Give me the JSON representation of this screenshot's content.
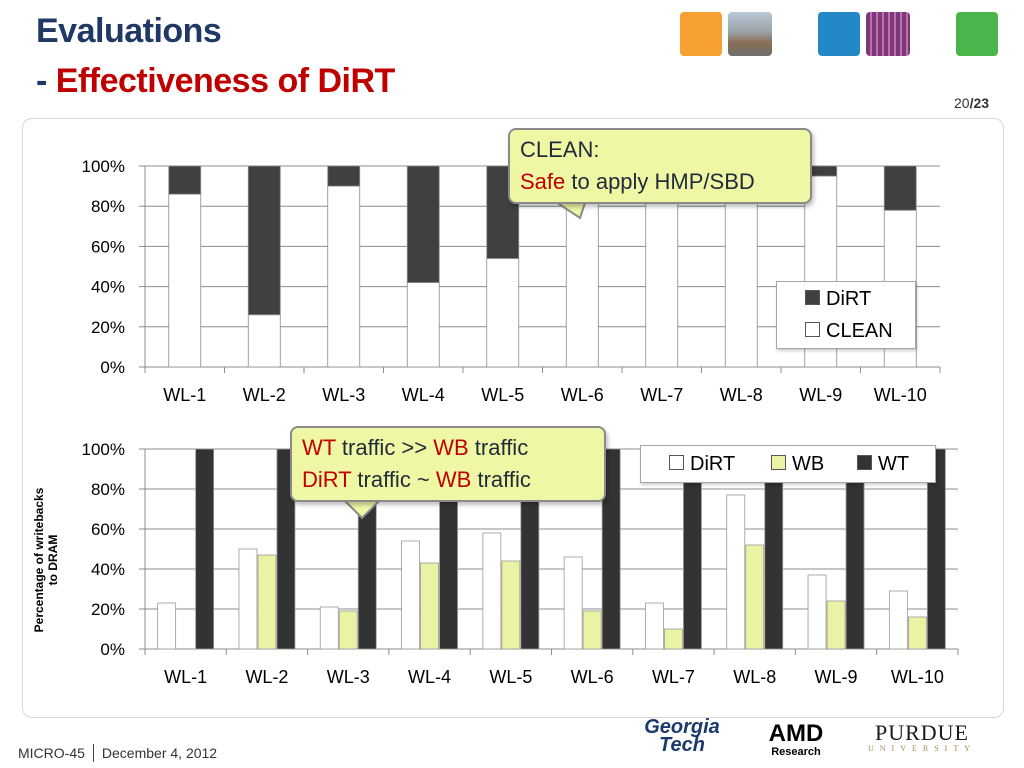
{
  "slide": {
    "title_line1": "Evaluations",
    "title_dash": "- ",
    "title_line2": "Effectiveness of DiRT",
    "page_current": "20",
    "page_sep": "/",
    "page_total": "23",
    "footer_conf": "MICRO-45",
    "footer_date": "December 4, 2012",
    "ylabel_line1": "Percentage of writebacks",
    "ylabel_line2": "to DRAM",
    "callout1": {
      "line1": "CLEAN:",
      "line2_red": "Safe",
      "line2_rest": " to apply HMP/SBD"
    },
    "callout2": {
      "l1_a": "WT",
      "l1_b": " traffic >> ",
      "l1_c": "WB",
      "l1_d": " traffic",
      "l2_a": "DiRT",
      "l2_b": " traffic ~ ",
      "l2_c": "WB",
      "l2_d": " traffic"
    },
    "logos": {
      "gt_line1": "Georgia",
      "gt_line2": "Tech",
      "amd": "AMD",
      "amd_sub": "Research",
      "purdue": "PURDUE",
      "purdue_sub": "UNIVERSITY"
    }
  },
  "colors": {
    "dirt_top": "#404040",
    "clean": "#ffffff",
    "wb": "#ebf2a3",
    "wt": "#333333",
    "title_blue": "#1f3864",
    "title_red": "#c00000",
    "callout_bg": "#f0f7a4"
  },
  "chart_data": [
    {
      "type": "bar",
      "stacked": true,
      "categories": [
        "WL-1",
        "WL-2",
        "WL-3",
        "WL-4",
        "WL-5",
        "WL-6",
        "WL-7",
        "WL-8",
        "WL-9",
        "WL-10"
      ],
      "series": [
        {
          "name": "CLEAN",
          "values": [
            86,
            26,
            90,
            42,
            54,
            82,
            83,
            83,
            95,
            78
          ]
        },
        {
          "name": "DiRT",
          "values": [
            14,
            74,
            10,
            58,
            46,
            18,
            17,
            17,
            5,
            22
          ]
        }
      ],
      "yticks": [
        "0%",
        "20%",
        "40%",
        "60%",
        "80%",
        "100%"
      ],
      "ylim": [
        0,
        100
      ],
      "legend": [
        "DiRT",
        "CLEAN"
      ],
      "legend_position": "right"
    },
    {
      "type": "bar",
      "stacked": false,
      "categories": [
        "WL-1",
        "WL-2",
        "WL-3",
        "WL-4",
        "WL-5",
        "WL-6",
        "WL-7",
        "WL-8",
        "WL-9",
        "WL-10"
      ],
      "series": [
        {
          "name": "DiRT",
          "values": [
            23,
            50,
            21,
            54,
            58,
            46,
            23,
            77,
            37,
            29
          ]
        },
        {
          "name": "WB",
          "values": [
            0,
            47,
            19,
            43,
            44,
            19,
            10,
            52,
            24,
            16
          ]
        },
        {
          "name": "WT",
          "values": [
            100,
            100,
            100,
            100,
            100,
            100,
            100,
            100,
            100,
            100
          ]
        }
      ],
      "yticks": [
        "0%",
        "20%",
        "40%",
        "60%",
        "80%",
        "100%"
      ],
      "ylim": [
        0,
        100
      ],
      "ylabel": "Percentage of writebacks to DRAM",
      "legend": [
        "DiRT",
        "WB",
        "WT"
      ],
      "legend_position": "top-right"
    }
  ]
}
